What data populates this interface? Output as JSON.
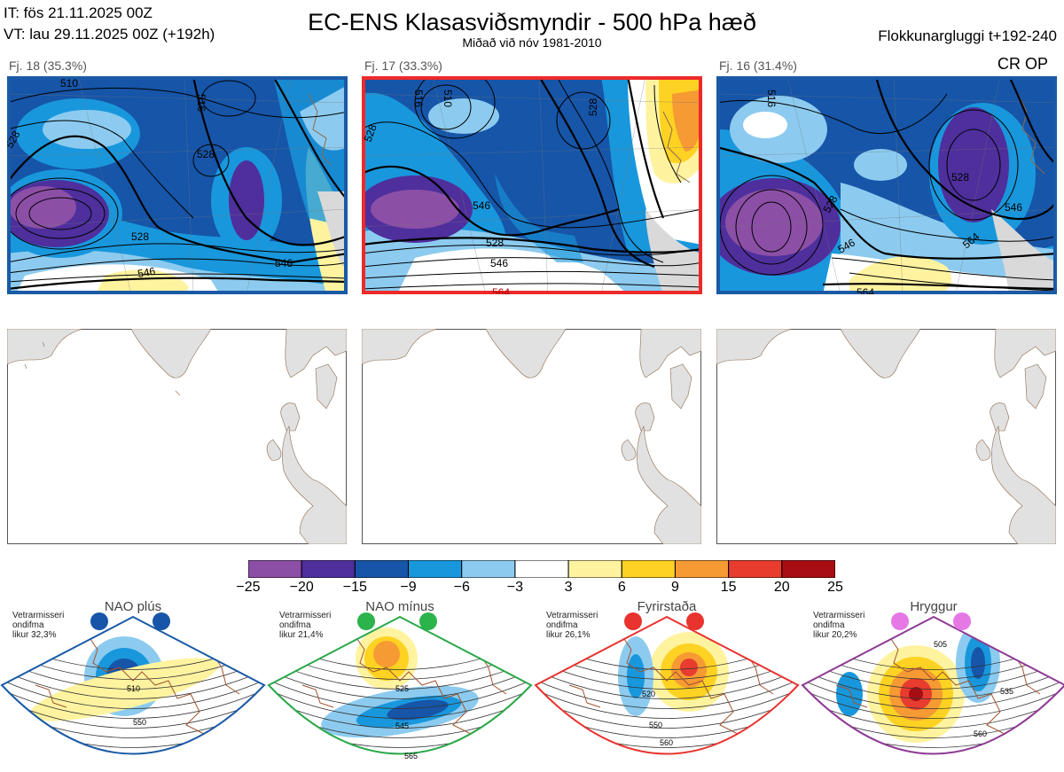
{
  "header": {
    "it": "IT: fös 21.11.2025 00Z",
    "vt": "VT: lau 29.11.2025 00Z  (+192h)",
    "title": "EC-ENS Klasasviðsmyndir - 500 hPa hæð",
    "subtitle": "Miðað við nóv 1981-2010",
    "window": "Flokkunargluggi t+192-240"
  },
  "clusters": [
    {
      "label": "Fj. 18 (35.3%)",
      "border": "#1a5aa6",
      "contours": [
        "510",
        "516",
        "528",
        "528",
        "528",
        "546",
        "546"
      ]
    },
    {
      "label": "Fj. 17 (33.3%)",
      "border": "#ec2a2a",
      "contours": [
        "510",
        "516",
        "528",
        "528",
        "528",
        "546",
        "546",
        "564"
      ]
    },
    {
      "label": "Fj. 16 (31.4%)",
      "border": "#1a5aa6",
      "contours": [
        "516",
        "528",
        "528",
        "546",
        "546",
        "564",
        "564"
      ]
    }
  ],
  "crop_label": "CR OP",
  "colorbar": {
    "colors": [
      "#8c4fa6",
      "#4e2f9c",
      "#1655a8",
      "#1997dc",
      "#8ccbef",
      "#ffffff",
      "#fff3a0",
      "#fed222",
      "#f69a34",
      "#e83c2f",
      "#a80d14"
    ],
    "ticks": [
      "−25",
      "−20",
      "−15",
      "−9",
      "−6",
      "−3",
      "3",
      "6",
      "9",
      "15",
      "20",
      "25"
    ]
  },
  "regimes": [
    {
      "name": "NAO plús",
      "info": [
        "Vetrarmisseri",
        "ondifma",
        "likur 32,3%"
      ],
      "color": "#1a5aa6",
      "dot": "#1655a8",
      "contours": [
        "510",
        "550"
      ]
    },
    {
      "name": "NAO mínus",
      "info": [
        "Vetrarmisseri",
        "ondifma",
        "likur 21,4%"
      ],
      "color": "#2aa84a",
      "dot": "#2bb34c",
      "contours": [
        "525",
        "545",
        "565"
      ]
    },
    {
      "name": "Fyrirstaða",
      "info": [
        "Vetrarmisseri",
        "ondifma",
        "likur 26,1%"
      ],
      "color": "#e8332f",
      "dot": "#e8332f",
      "contours": [
        "520",
        "550",
        "560"
      ]
    },
    {
      "name": "Hryggur",
      "info": [
        "Vetrarmisseri",
        "ondifma",
        "likur 20,2%"
      ],
      "color": "#8e3a94",
      "dot": "#e678e6",
      "contours": [
        "505",
        "535",
        "560"
      ]
    }
  ]
}
